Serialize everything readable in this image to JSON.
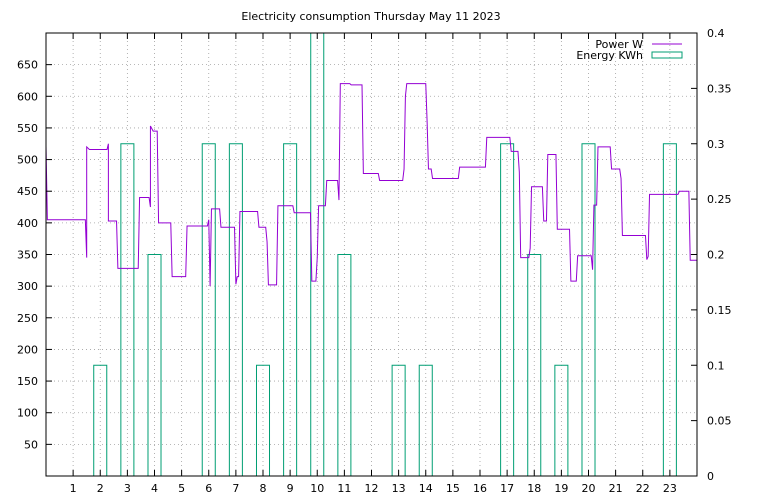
{
  "chart_data": {
    "type": "line",
    "title": "Electricity consumption Thursday May 11 2023",
    "x": {
      "range": [
        0,
        24
      ],
      "ticks": [
        1,
        2,
        3,
        4,
        5,
        6,
        7,
        8,
        9,
        10,
        11,
        12,
        13,
        14,
        15,
        16,
        17,
        18,
        19,
        20,
        21,
        22,
        23
      ],
      "tick_labels": [
        "1",
        "2",
        "3",
        "4",
        "5",
        "6",
        "7",
        "8",
        "9",
        "10",
        "11",
        "12",
        "13",
        "14",
        "15",
        "16",
        "17",
        "18",
        "19",
        "20",
        "21",
        "22",
        "23"
      ]
    },
    "y_left": {
      "range": [
        0,
        700
      ],
      "ticks": [
        50,
        100,
        150,
        200,
        250,
        300,
        350,
        400,
        450,
        500,
        550,
        600,
        650
      ],
      "tick_labels": [
        "50",
        "100",
        "150",
        "200",
        "250",
        "300",
        "350",
        "400",
        "450",
        "500",
        "550",
        "600",
        "650"
      ]
    },
    "y_right": {
      "range": [
        0,
        0.4
      ],
      "ticks": [
        0,
        0.05,
        0.1,
        0.15,
        0.2,
        0.25,
        0.3,
        0.35,
        0.4
      ],
      "tick_labels": [
        "0",
        "0.05",
        "0.1",
        "0.15",
        "0.2",
        "0.25",
        "0.3",
        "0.35",
        "0.4"
      ]
    },
    "grid": true,
    "legend_position": "top-right",
    "series": [
      {
        "name": "Power W",
        "axis": "left",
        "color": "#9400d3",
        "style": "steps",
        "points": [
          [
            0.0,
            522
          ],
          [
            0.05,
            405
          ],
          [
            1.45,
            405
          ],
          [
            1.5,
            345
          ],
          [
            1.5,
            520
          ],
          [
            1.6,
            516
          ],
          [
            2.25,
            516
          ],
          [
            2.3,
            525
          ],
          [
            2.3,
            403
          ],
          [
            2.6,
            403
          ],
          [
            2.65,
            328
          ],
          [
            3.4,
            328
          ],
          [
            3.45,
            440
          ],
          [
            3.8,
            440
          ],
          [
            3.85,
            425
          ],
          [
            3.85,
            553
          ],
          [
            3.95,
            545
          ],
          [
            4.1,
            545
          ],
          [
            4.15,
            400
          ],
          [
            4.6,
            400
          ],
          [
            4.65,
            315
          ],
          [
            5.15,
            315
          ],
          [
            5.2,
            395
          ],
          [
            5.95,
            395
          ],
          [
            6.0,
            405
          ],
          [
            6.05,
            300
          ],
          [
            6.1,
            422
          ],
          [
            6.4,
            422
          ],
          [
            6.45,
            393
          ],
          [
            6.95,
            393
          ],
          [
            7.0,
            303
          ],
          [
            7.05,
            315
          ],
          [
            7.1,
            315
          ],
          [
            7.15,
            418
          ],
          [
            7.8,
            418
          ],
          [
            7.85,
            393
          ],
          [
            8.1,
            393
          ],
          [
            8.15,
            370
          ],
          [
            8.2,
            302
          ],
          [
            8.5,
            302
          ],
          [
            8.55,
            427
          ],
          [
            9.1,
            427
          ],
          [
            9.15,
            416
          ],
          [
            9.75,
            416
          ],
          [
            9.8,
            308
          ],
          [
            9.95,
            308
          ],
          [
            10.0,
            345
          ],
          [
            10.05,
            427
          ],
          [
            10.3,
            427
          ],
          [
            10.35,
            467
          ],
          [
            10.75,
            467
          ],
          [
            10.8,
            436
          ],
          [
            10.85,
            620
          ],
          [
            11.2,
            620
          ],
          [
            11.25,
            618
          ],
          [
            11.65,
            618
          ],
          [
            11.7,
            478
          ],
          [
            12.25,
            478
          ],
          [
            12.3,
            467
          ],
          [
            13.15,
            467
          ],
          [
            13.2,
            485
          ],
          [
            13.25,
            600
          ],
          [
            13.3,
            620
          ],
          [
            14.0,
            620
          ],
          [
            14.05,
            560
          ],
          [
            14.1,
            485
          ],
          [
            14.2,
            485
          ],
          [
            14.25,
            470
          ],
          [
            15.2,
            470
          ],
          [
            15.25,
            488
          ],
          [
            16.2,
            488
          ],
          [
            16.25,
            535
          ],
          [
            17.1,
            535
          ],
          [
            17.15,
            513
          ],
          [
            17.4,
            513
          ],
          [
            17.45,
            480
          ],
          [
            17.5,
            345
          ],
          [
            17.8,
            345
          ],
          [
            17.85,
            360
          ],
          [
            17.9,
            457
          ],
          [
            18.3,
            457
          ],
          [
            18.35,
            403
          ],
          [
            18.45,
            403
          ],
          [
            18.5,
            508
          ],
          [
            18.8,
            508
          ],
          [
            18.85,
            390
          ],
          [
            19.3,
            390
          ],
          [
            19.35,
            308
          ],
          [
            19.55,
            308
          ],
          [
            19.6,
            348
          ],
          [
            20.1,
            348
          ],
          [
            20.15,
            326
          ],
          [
            20.2,
            428
          ],
          [
            20.3,
            428
          ],
          [
            20.35,
            520
          ],
          [
            20.8,
            520
          ],
          [
            20.85,
            485
          ],
          [
            21.15,
            485
          ],
          [
            21.2,
            470
          ],
          [
            21.25,
            380
          ],
          [
            22.1,
            380
          ],
          [
            22.15,
            342
          ],
          [
            22.2,
            347
          ],
          [
            22.25,
            445
          ],
          [
            23.3,
            445
          ],
          [
            23.35,
            450
          ],
          [
            23.7,
            450
          ],
          [
            23.75,
            341
          ],
          [
            24.0,
            341
          ],
          [
            24.0,
            325
          ]
        ]
      },
      {
        "name": "Energy KWh",
        "axis": "right",
        "color": "#009e73",
        "style": "boxes",
        "bars": [
          [
            2,
            0.1
          ],
          [
            3,
            0.3
          ],
          [
            4,
            0.2
          ],
          [
            6,
            0.3
          ],
          [
            7,
            0.3
          ],
          [
            8,
            0.1
          ],
          [
            9,
            0.3
          ],
          [
            10,
            0.4
          ],
          [
            11,
            0.2
          ],
          [
            13,
            0.1
          ],
          [
            14,
            0.1
          ],
          [
            17,
            0.3
          ],
          [
            18,
            0.2
          ],
          [
            19,
            0.1
          ],
          [
            20,
            0.3
          ],
          [
            23,
            0.3
          ]
        ]
      }
    ]
  }
}
